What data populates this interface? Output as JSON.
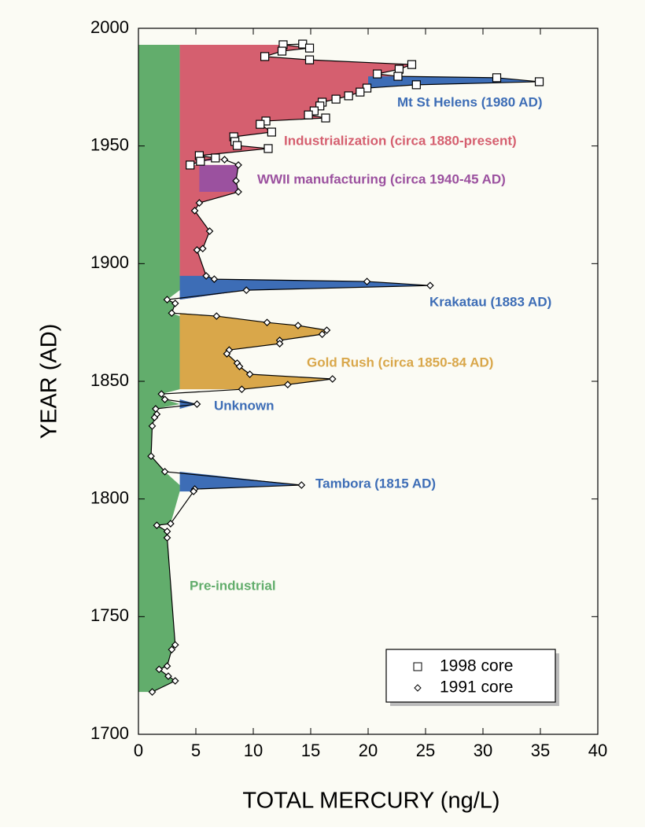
{
  "chart_data": {
    "type": "line",
    "xlabel": "TOTAL MERCURY (ng/L)",
    "ylabel": "YEAR (AD)",
    "xlim": [
      0,
      40
    ],
    "xticks": [
      0,
      5,
      10,
      15,
      20,
      25,
      30,
      35,
      40
    ],
    "ylim": [
      1700,
      2000
    ],
    "yticks": [
      1700,
      1750,
      1800,
      1850,
      1900,
      1950,
      2000
    ],
    "legend": "lower right",
    "line_color": "#000000",
    "series": [
      {
        "name": "1998 core",
        "marker": "square",
        "x": [
          14.3,
          12.6,
          14.9,
          12.5,
          11,
          14.9,
          23.8,
          22.7,
          20.8,
          22.6,
          31.2,
          34.9,
          24.2,
          19.9,
          19.3,
          18.3,
          17.2,
          16,
          15.8,
          15.3,
          14.8,
          16.3,
          11.1,
          10.6,
          11.6,
          8.3,
          8.4,
          8.6,
          11.3,
          5.3,
          6.7,
          5.4,
          4.5
        ],
        "values": [
          1993.3,
          1993,
          1991.6,
          1990.3,
          1988,
          1986.6,
          1984.6,
          1982.6,
          1980.6,
          1979.6,
          1979,
          1977.3,
          1976,
          1974.6,
          1972.9,
          1971.3,
          1969.9,
          1968.6,
          1967,
          1964.9,
          1963.2,
          1961.9,
          1960.6,
          1959.2,
          1955.9,
          1953.9,
          1951.9,
          1950.2,
          1948.9,
          1945.9,
          1944.9,
          1943.5,
          1941.9
        ]
      },
      {
        "name": "1991 core",
        "marker": "diamond",
        "x": [
          7.5,
          8.7,
          8.5,
          8.7,
          5.3,
          4.9,
          6.2,
          5.6,
          5.1,
          5.9,
          6.6,
          19.9,
          25.4,
          9.4,
          2.5,
          3.2,
          2.9,
          6.8,
          11.2,
          13.9,
          16.4,
          16,
          12.3,
          12.3,
          7.9,
          7.7,
          8.6,
          8.8,
          9.7,
          16.9,
          13,
          9,
          2,
          2.3,
          5.1,
          1.5,
          1.6,
          1.4,
          1.2,
          1.1,
          2.3,
          14.2,
          4.9,
          4.8,
          2.8,
          1.6,
          2.5,
          2.5,
          3.2,
          2.9,
          2.5,
          1.8,
          2.6,
          3.2,
          1.2
        ],
        "values": [
          1944.2,
          1941.9,
          1935.2,
          1930.5,
          1925.8,
          1922.5,
          1913.8,
          1906.4,
          1905.8,
          1894.8,
          1893.4,
          1892.4,
          1890.7,
          1888.7,
          1884.7,
          1883.1,
          1879,
          1877.7,
          1875,
          1873.7,
          1871.7,
          1870,
          1867.4,
          1866,
          1863.3,
          1861.7,
          1857.7,
          1856.3,
          1853,
          1851,
          1848.6,
          1846.6,
          1844.6,
          1842.3,
          1840.3,
          1838.3,
          1836,
          1834.6,
          1831,
          1818.2,
          1811.6,
          1805.9,
          1804.2,
          1803.2,
          1789.5,
          1788.8,
          1786.2,
          1783.5,
          1738,
          1736,
          1729,
          1727.6,
          1724.7,
          1722.7,
          1718
        ]
      }
    ],
    "regions": [
      {
        "label": "Pre-industrial",
        "color": "#62ad6c",
        "years": [
          1718,
          1993
        ],
        "cap": 3.6
      },
      {
        "label": "Industrialization (circa 1880-present)",
        "color": "#d55f6f",
        "years": [
          1884,
          1993
        ],
        "base": 3.6
      },
      {
        "label": "Mt St Helens (1980 AD)",
        "color": "#3d6db6",
        "years": [
          1974.6,
          1979.6
        ],
        "base": 20
      },
      {
        "label": "WWII manufacturing (circa 1940-45 AD)",
        "color": "#9b519f",
        "years": [
          1930.5,
          1944.2
        ],
        "base": 5.3
      },
      {
        "label": "Krakatau (1883 AD)",
        "color": "#3d6db6",
        "years": [
          1884.7,
          1894.8
        ],
        "base": 3.6
      },
      {
        "label": "Gold Rush (circa 1850-84 AD)",
        "color": "#d9a74a",
        "years": [
          1846.6,
          1879
        ],
        "base": 3.6
      },
      {
        "label": "Unknown",
        "color": "#3d6db6",
        "years": [
          1838.3,
          1842.3
        ],
        "base": 3.6
      },
      {
        "label": "Tambora (1815 AD)",
        "color": "#3d6db6",
        "years": [
          1803.2,
          1811.6
        ],
        "base": 3.6
      }
    ]
  }
}
